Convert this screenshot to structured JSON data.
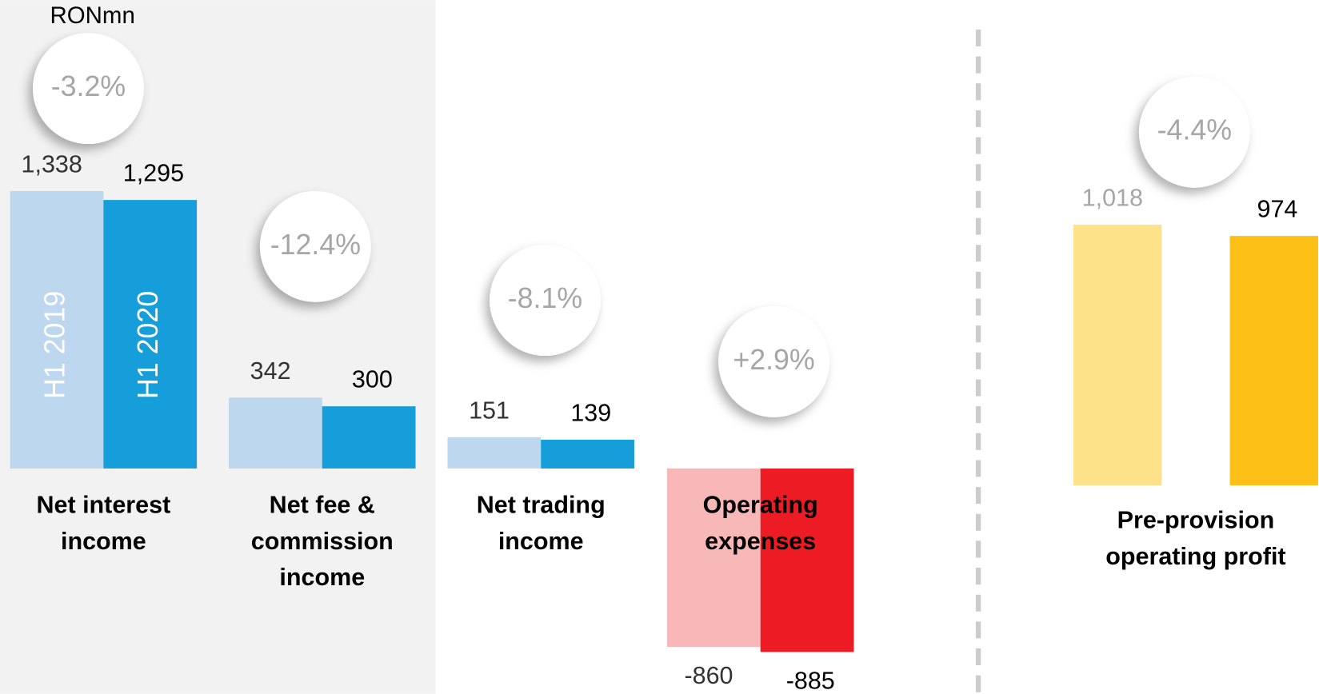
{
  "unit": "RONmn",
  "chart_data": [
    {
      "type": "bar",
      "categories": [
        "Net interest income",
        "Net fee & commission income",
        "Net trading income",
        "Operating expenses"
      ],
      "series": [
        {
          "name": "H1 2019",
          "colors": [
            "#bdd7ee",
            "#bdd7ee",
            "#bdd7ee",
            "#f8b8b8"
          ],
          "label_color": "#333333",
          "values": [
            1338,
            342,
            151,
            -860
          ],
          "value_labels": [
            "1,338",
            "342",
            "151",
            "-860"
          ]
        },
        {
          "name": "H1 2020",
          "colors": [
            "#159ed9",
            "#159ed9",
            "#159ed9",
            "#ed1c24"
          ],
          "label_color": "#000000",
          "values": [
            1295,
            300,
            139,
            -885
          ],
          "value_labels": [
            "1,295",
            "300",
            "139",
            "-885"
          ]
        }
      ],
      "changes": [
        -3.2,
        -12.4,
        -8.1,
        2.9
      ],
      "change_labels": [
        "-3.2%",
        "-12.4%",
        "-8.1%",
        "+2.9%"
      ]
    },
    {
      "type": "bar",
      "categories": [
        "Pre-provision operating profit"
      ],
      "series": [
        {
          "colors": [
            "#fde28a"
          ],
          "label_color": "#a6a6a6",
          "values": [
            1018
          ],
          "value_labels": [
            "1,018"
          ]
        },
        {
          "colors": [
            "#fdc016"
          ],
          "label_color": "#000000",
          "values": [
            974
          ],
          "value_labels": [
            "974"
          ]
        }
      ],
      "changes": [
        -4.4
      ],
      "change_labels": [
        "-4.4%"
      ]
    }
  ]
}
